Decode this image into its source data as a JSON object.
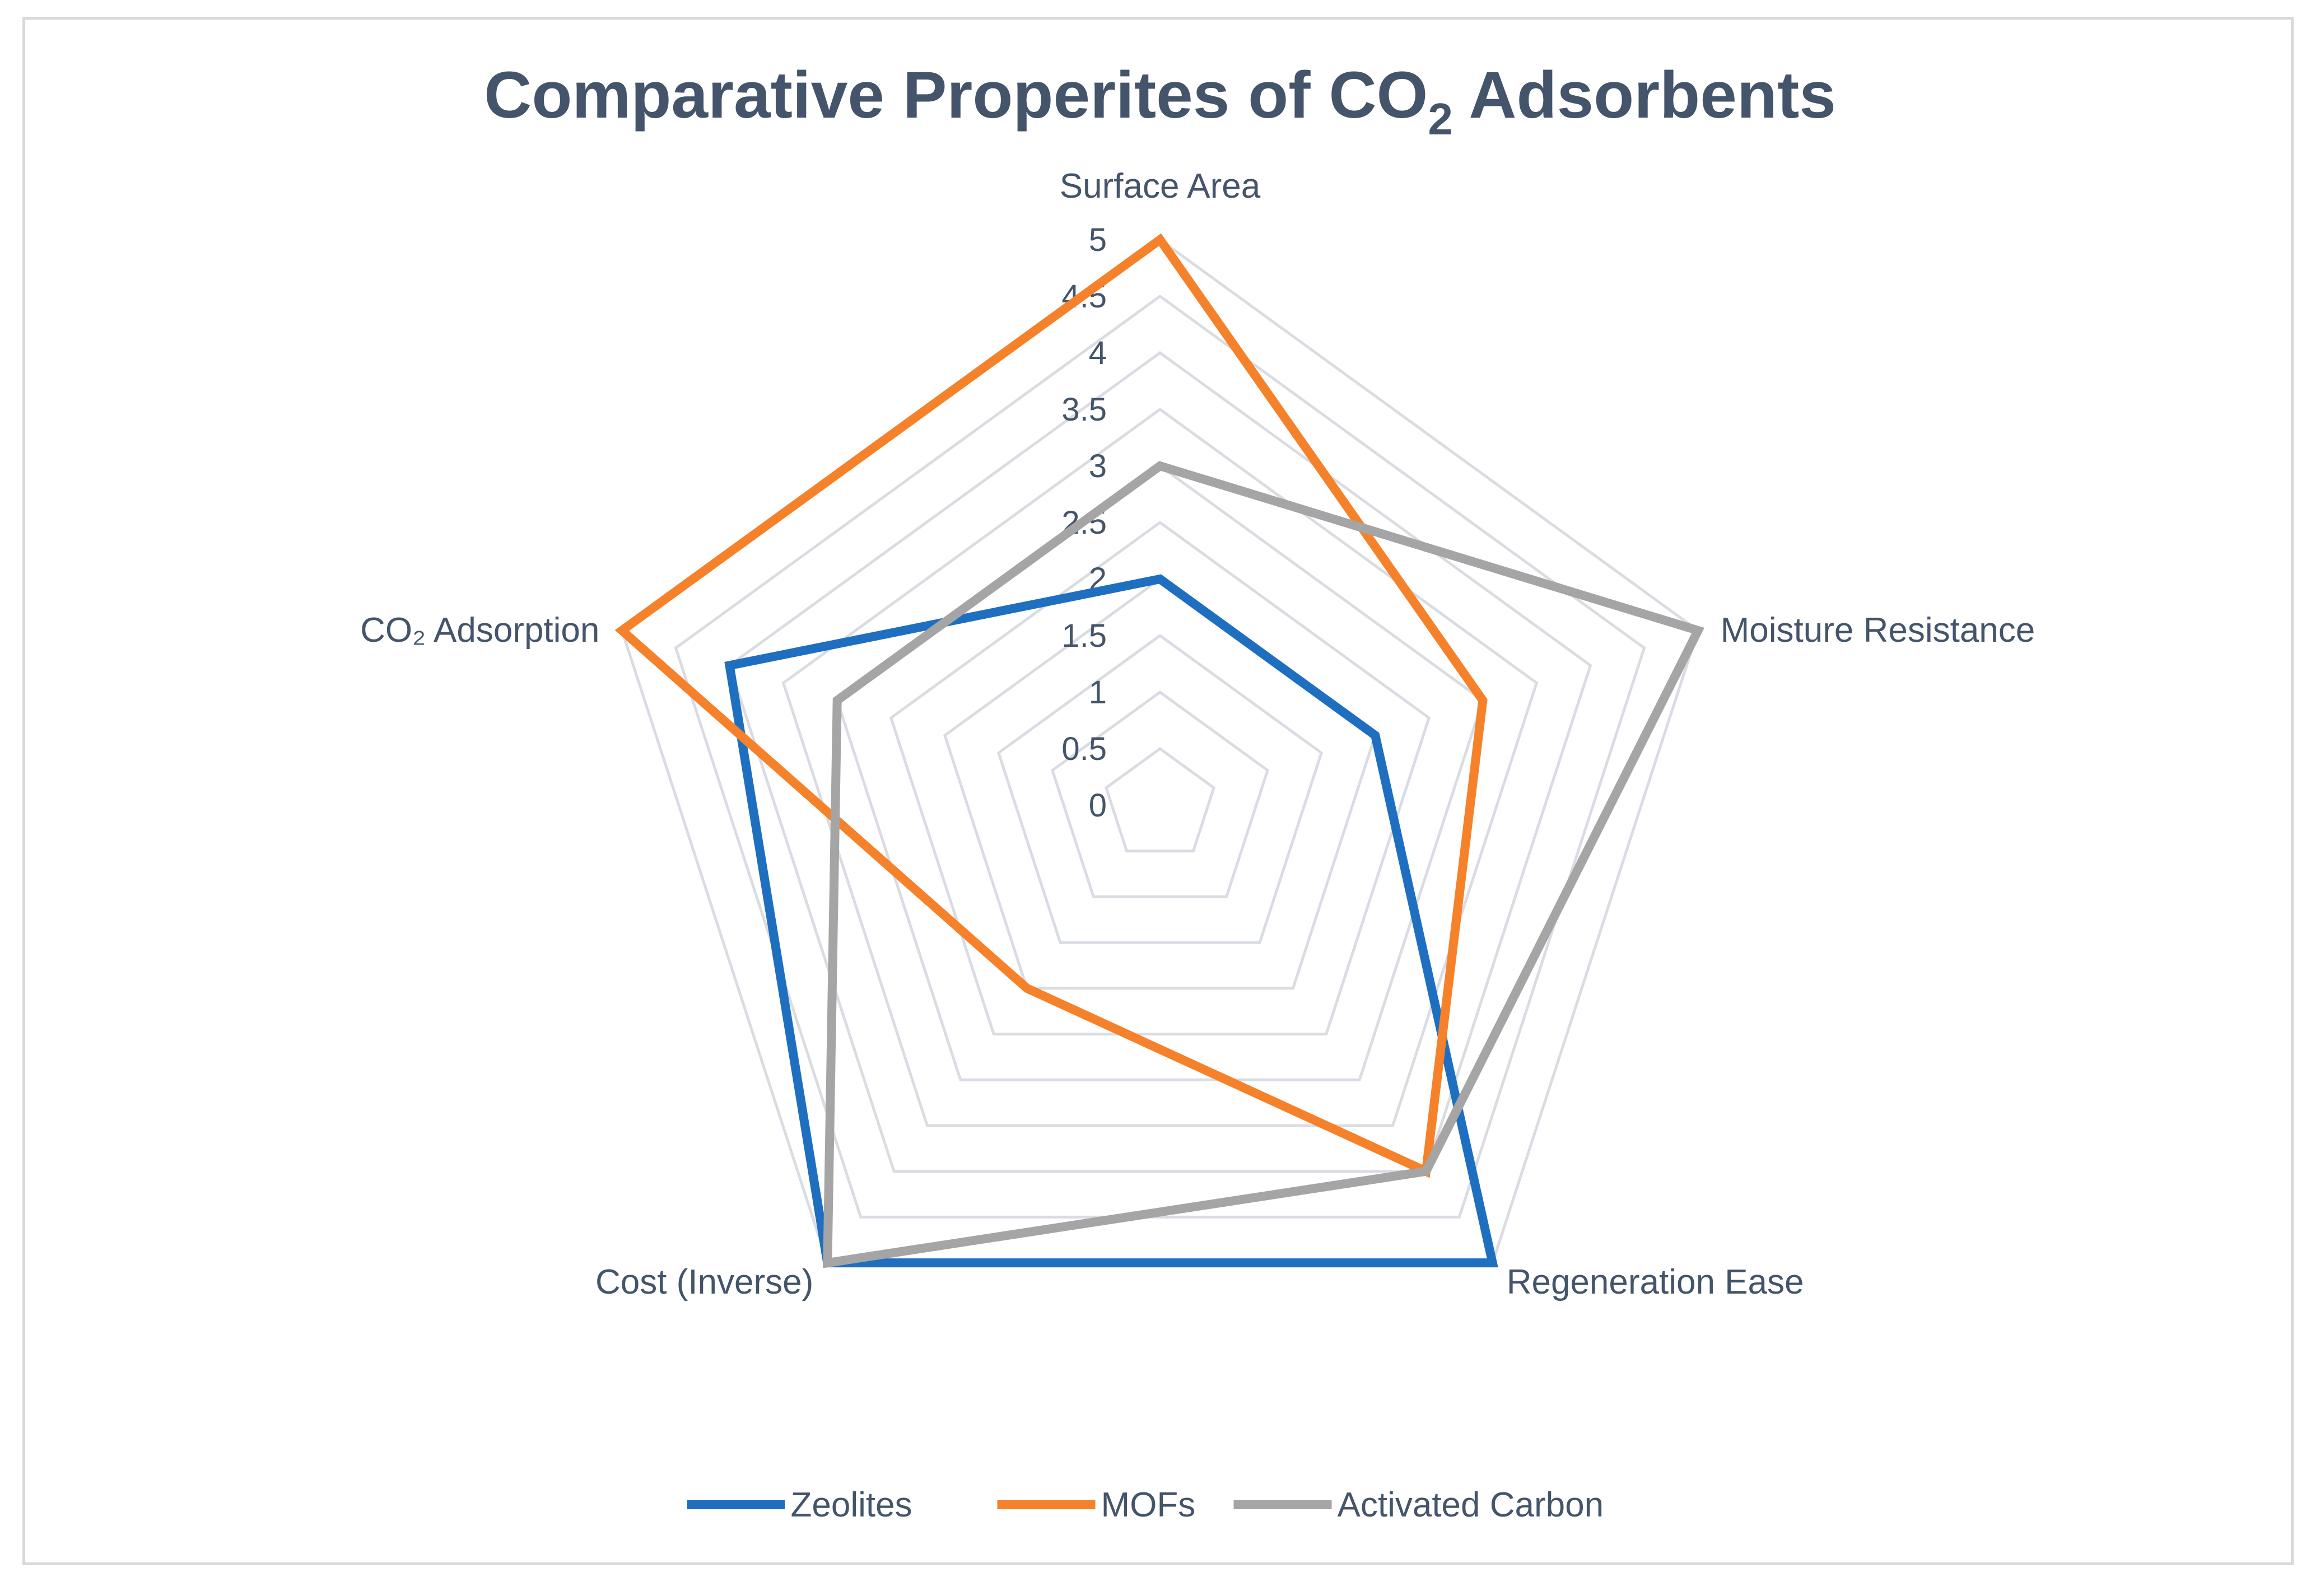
{
  "chart_data": {
    "type": "radar",
    "title": {
      "main": "Comparative Properites of CO",
      "subscript": "2",
      "suffix": " Adsorbents"
    },
    "axes": [
      "Surface Area",
      "Moisture Resistance",
      "Regeneration Ease",
      "Cost (Inverse)",
      "CO₂ Adsorption"
    ],
    "rlim": [
      0,
      5
    ],
    "ticks": [
      "0",
      "0.5",
      "1",
      "1.5",
      "2",
      "2.5",
      "3",
      "3.5",
      "4",
      "4.5",
      "5"
    ],
    "tick_values": [
      0,
      0.5,
      1,
      1.5,
      2,
      2.5,
      3,
      3.5,
      4,
      4.5,
      5
    ],
    "grid": true,
    "legend_position": "bottom",
    "series": [
      {
        "name": "Zeolites",
        "color": "#1f6fc0",
        "values": [
          2,
          2,
          5,
          5,
          4
        ]
      },
      {
        "name": "MOFs",
        "color": "#f5822a",
        "values": [
          5,
          3,
          4,
          2,
          5
        ]
      },
      {
        "name": "Activated Carbon",
        "color": "#a5a5a5",
        "values": [
          3,
          5,
          4,
          5,
          3
        ]
      }
    ]
  }
}
